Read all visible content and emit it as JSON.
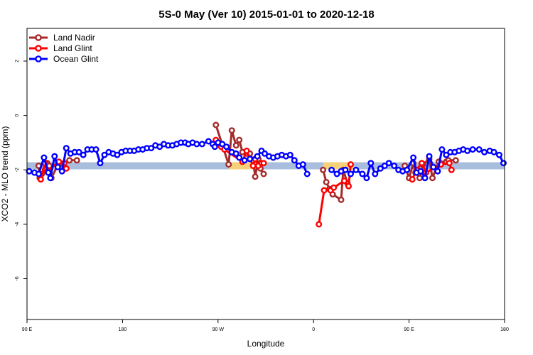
{
  "chart_data": {
    "type": "line",
    "title": "5S-0 May (Ver 10)   2015-01-01 to 2020-12-18",
    "xlabel": "Longitude",
    "ylabel": "XCO2 - MLO trend (ppm)",
    "xlim": [
      -90,
      360
    ],
    "ylim": [
      -7.5,
      3.2
    ],
    "x_ticks": [
      {
        "value": -90,
        "label": "90 E"
      },
      {
        "value": 0,
        "label": "180"
      },
      {
        "value": 90,
        "label": "90 W"
      },
      {
        "value": 180,
        "label": "0"
      },
      {
        "value": 270,
        "label": "90 E"
      },
      {
        "value": 360,
        "label": "180"
      }
    ],
    "y_ticks": [
      {
        "value": 2,
        "label": "2"
      },
      {
        "value": 0,
        "label": "0"
      },
      {
        "value": -2,
        "label": "-2"
      },
      {
        "value": -4,
        "label": "-4"
      },
      {
        "value": -6,
        "label": "-6"
      }
    ],
    "grid": false,
    "legend_position": "top-left",
    "bands": [
      {
        "name": "mean",
        "y_center": -1.85,
        "half_width": 0.13,
        "x_from": -90,
        "x_to": 360,
        "color": "#a8bedc"
      },
      {
        "name": "land-mean-1",
        "y_center": -1.85,
        "half_width": 0.13,
        "x_from": 100,
        "x_to": 128,
        "color": "#f5d27a"
      },
      {
        "name": "land-mean-2",
        "y_center": -1.85,
        "half_width": 0.13,
        "x_from": 189,
        "x_to": 218,
        "color": "#f5d27a"
      }
    ],
    "series": [
      {
        "name": "Land Nadir",
        "color": "#a52a2a",
        "points": [
          [
            -79,
            -1.85
          ],
          [
            -78,
            -2.3
          ],
          [
            -76,
            -2.15
          ],
          [
            -73,
            -2.0
          ],
          [
            -71,
            -1.75
          ],
          [
            -69,
            -1.85
          ],
          [
            -67,
            -2.3
          ],
          [
            -60,
            -1.75
          ],
          [
            -56,
            -1.8
          ],
          [
            -50,
            -1.65
          ],
          [
            -43,
            -1.65
          ],
          [
            88,
            -0.35
          ],
          [
            100,
            -1.8
          ],
          [
            103,
            -0.55
          ],
          [
            107,
            -1.1
          ],
          [
            110,
            -0.9
          ],
          [
            113,
            -1.35
          ],
          [
            117,
            -1.4
          ],
          [
            120,
            -1.4
          ],
          [
            123,
            -1.65
          ],
          [
            125,
            -2.25
          ],
          [
            128,
            -1.6
          ],
          [
            130,
            -1.95
          ],
          [
            133,
            -2.15
          ],
          [
            189,
            -2.0
          ],
          [
            192,
            -2.45
          ],
          [
            195,
            -2.7
          ],
          [
            198,
            -2.9
          ],
          [
            206,
            -3.1
          ],
          [
            208,
            -2.0
          ],
          [
            212,
            -2.5
          ],
          [
            266,
            -1.85
          ],
          [
            270,
            -2.3
          ],
          [
            274,
            -1.75
          ],
          [
            276,
            -2.1
          ],
          [
            280,
            -2.3
          ],
          [
            283,
            -1.8
          ],
          [
            289,
            -1.6
          ],
          [
            292,
            -2.3
          ],
          [
            298,
            -1.7
          ],
          [
            305,
            -1.7
          ],
          [
            307,
            -1.65
          ],
          [
            314,
            -1.65
          ]
        ]
      },
      {
        "name": "Land Glint",
        "color": "#ff0000",
        "points": [
          [
            -77,
            -2.35
          ],
          [
            -73,
            -1.75
          ],
          [
            -71,
            -2.05
          ],
          [
            -60,
            -1.7
          ],
          [
            -55,
            -1.75
          ],
          [
            -53,
            -1.95
          ],
          [
            88,
            -0.9
          ],
          [
            93,
            -1.15
          ],
          [
            96,
            -1.25
          ],
          [
            113,
            -1.7
          ],
          [
            117,
            -1.3
          ],
          [
            123,
            -1.85
          ],
          [
            125,
            -1.6
          ],
          [
            128,
            -1.85
          ],
          [
            131,
            -1.75
          ],
          [
            133,
            -1.75
          ],
          [
            185,
            -4.0
          ],
          [
            190,
            -2.75
          ],
          [
            196,
            -2.75
          ],
          [
            199,
            -2.65
          ],
          [
            209,
            -2.4
          ],
          [
            213,
            -2.6
          ],
          [
            215,
            -1.8
          ],
          [
            273,
            -2.35
          ],
          [
            277,
            -2.0
          ],
          [
            282,
            -1.75
          ],
          [
            286,
            -2.1
          ],
          [
            300,
            -1.8
          ],
          [
            308,
            -1.75
          ],
          [
            310,
            -2.0
          ]
        ]
      },
      {
        "name": "Ocean Glint",
        "color": "#0000ff",
        "points": [
          [
            -88,
            -2.05
          ],
          [
            -83,
            -2.1
          ],
          [
            -79,
            -2.15
          ],
          [
            -74,
            -1.55
          ],
          [
            -70,
            -2.1
          ],
          [
            -68,
            -2.3
          ],
          [
            -64,
            -1.5
          ],
          [
            -61,
            -1.9
          ],
          [
            -57,
            -2.05
          ],
          [
            -53,
            -1.2
          ],
          [
            -49,
            -1.4
          ],
          [
            -45,
            -1.35
          ],
          [
            -41,
            -1.35
          ],
          [
            -37,
            -1.45
          ],
          [
            -33,
            -1.25
          ],
          [
            -29,
            -1.25
          ],
          [
            -25,
            -1.25
          ],
          [
            -21,
            -1.75
          ],
          [
            -17,
            -1.45
          ],
          [
            -13,
            -1.35
          ],
          [
            -9,
            -1.4
          ],
          [
            -5,
            -1.45
          ],
          [
            -1,
            -1.35
          ],
          [
            3,
            -1.3
          ],
          [
            7,
            -1.3
          ],
          [
            11,
            -1.3
          ],
          [
            15,
            -1.25
          ],
          [
            19,
            -1.25
          ],
          [
            23,
            -1.2
          ],
          [
            27,
            -1.2
          ],
          [
            31,
            -1.1
          ],
          [
            35,
            -1.15
          ],
          [
            39,
            -1.05
          ],
          [
            43,
            -1.1
          ],
          [
            47,
            -1.1
          ],
          [
            51,
            -1.05
          ],
          [
            55,
            -1.0
          ],
          [
            59,
            -1.0
          ],
          [
            62,
            -1.05
          ],
          [
            66,
            -1.0
          ],
          [
            70,
            -1.05
          ],
          [
            75,
            -1.05
          ],
          [
            81,
            -0.95
          ],
          [
            85,
            -1.05
          ],
          [
            87,
            -1.15
          ],
          [
            90,
            -1.0
          ],
          [
            94,
            -1.05
          ],
          [
            98,
            -1.15
          ],
          [
            103,
            -1.35
          ],
          [
            107,
            -1.4
          ],
          [
            110,
            -1.55
          ],
          [
            115,
            -1.65
          ],
          [
            120,
            -1.6
          ],
          [
            127,
            -1.5
          ],
          [
            131,
            -1.3
          ],
          [
            134,
            -1.4
          ],
          [
            138,
            -1.5
          ],
          [
            142,
            -1.55
          ],
          [
            146,
            -1.5
          ],
          [
            150,
            -1.45
          ],
          [
            154,
            -1.5
          ],
          [
            158,
            -1.45
          ],
          [
            162,
            -1.65
          ],
          [
            166,
            -1.85
          ],
          [
            170,
            -1.8
          ],
          [
            174,
            -2.15
          ],
          [
            197,
            -2.0
          ],
          [
            202,
            -2.15
          ],
          [
            206,
            -2.05
          ],
          [
            210,
            -2.0
          ],
          [
            215,
            -2.15
          ],
          [
            220,
            -2.0
          ],
          [
            226,
            -2.15
          ],
          [
            230,
            -2.3
          ],
          [
            234,
            -1.75
          ],
          [
            238,
            -2.15
          ],
          [
            243,
            -1.95
          ],
          [
            247,
            -1.85
          ],
          [
            251,
            -1.75
          ],
          [
            256,
            -1.85
          ],
          [
            260,
            -2.0
          ],
          [
            264,
            -2.05
          ],
          [
            268,
            -2.0
          ],
          [
            274,
            -1.55
          ],
          [
            277,
            -2.1
          ],
          [
            281,
            -2.05
          ],
          [
            285,
            -2.3
          ],
          [
            289,
            -1.5
          ],
          [
            293,
            -1.9
          ],
          [
            297,
            -2.05
          ],
          [
            301,
            -1.25
          ],
          [
            305,
            -1.45
          ],
          [
            309,
            -1.35
          ],
          [
            313,
            -1.35
          ],
          [
            317,
            -1.3
          ],
          [
            321,
            -1.25
          ],
          [
            325,
            -1.3
          ],
          [
            330,
            -1.25
          ],
          [
            336,
            -1.25
          ],
          [
            341,
            -1.35
          ],
          [
            346,
            -1.3
          ],
          [
            350,
            -1.35
          ],
          [
            355,
            -1.45
          ],
          [
            359,
            -1.75
          ]
        ]
      }
    ]
  }
}
